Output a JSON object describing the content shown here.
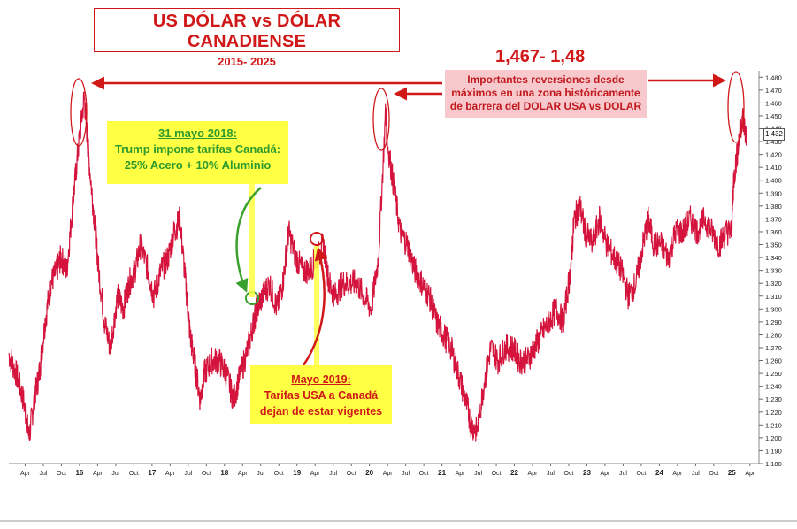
{
  "chart_data": {
    "type": "line",
    "title": "US DÓLAR vs DÓLAR CANADIENSE",
    "subtitle": "2015- 2025",
    "ylim": [
      1.18,
      1.485
    ],
    "y_ticks": [
      "1.480",
      "1.470",
      "1.460",
      "1.450",
      "1.440",
      "1.430",
      "1.420",
      "1.410",
      "1.400",
      "1.390",
      "1.380",
      "1.370",
      "1.360",
      "1.350",
      "1.340",
      "1.330",
      "1.320",
      "1.310",
      "1.300",
      "1.290",
      "1.280",
      "1.270",
      "1.260",
      "1.250",
      "1.240",
      "1.230",
      "1.220",
      "1.210",
      "1.200",
      "1.190",
      "1.180"
    ],
    "x_ticks": [
      "Apr",
      "Jul",
      "Oct",
      "16",
      "Apr",
      "Jul",
      "Oct",
      "17",
      "Apr",
      "Jul",
      "Oct",
      "18",
      "Apr",
      "Jul",
      "Oct",
      "19",
      "Apr",
      "Jul",
      "Oct",
      "20",
      "Apr",
      "Jul",
      "Oct",
      "21",
      "Apr",
      "Jul",
      "Oct",
      "22",
      "Apr",
      "Jul",
      "Oct",
      "23",
      "Apr",
      "Jul",
      "Oct",
      "24",
      "Apr",
      "Jul",
      "Oct",
      "25",
      "Apr"
    ],
    "series": [
      {
        "color": "#d4143c",
        "x": [
          2015.0,
          2015.1,
          2015.2,
          2015.28,
          2015.35,
          2015.42,
          2015.5,
          2015.58,
          2015.66,
          2015.72,
          2015.8,
          2015.88,
          2015.95,
          2016.04,
          2016.1,
          2016.18,
          2016.24,
          2016.32,
          2016.4,
          2016.5,
          2016.58,
          2016.66,
          2016.74,
          2016.82,
          2016.92,
          2017.0,
          2017.1,
          2017.2,
          2017.28,
          2017.36,
          2017.44,
          2017.5,
          2017.56,
          2017.64,
          2017.7,
          2017.8,
          2017.9,
          2018.0,
          2018.1,
          2018.2,
          2018.3,
          2018.38,
          2018.42,
          2018.5,
          2018.6,
          2018.7,
          2018.78,
          2018.86,
          2018.96,
          2019.05,
          2019.15,
          2019.25,
          2019.34,
          2019.42,
          2019.5,
          2019.6,
          2019.7,
          2019.8,
          2019.9,
          2020.0,
          2020.1,
          2020.2,
          2020.22,
          2020.3,
          2020.4,
          2020.5,
          2020.6,
          2020.7,
          2020.8,
          2020.9,
          2021.0,
          2021.1,
          2021.2,
          2021.3,
          2021.38,
          2021.46,
          2021.55,
          2021.65,
          2021.75,
          2021.85,
          2021.95,
          2022.05,
          2022.15,
          2022.25,
          2022.35,
          2022.45,
          2022.55,
          2022.65,
          2022.75,
          2022.8,
          2022.88,
          2022.95,
          2023.05,
          2023.15,
          2023.25,
          2023.35,
          2023.45,
          2023.55,
          2023.65,
          2023.75,
          2023.82,
          2023.9,
          2024.0,
          2024.1,
          2024.2,
          2024.3,
          2024.4,
          2024.5,
          2024.6,
          2024.7,
          2024.8,
          2024.9,
          2024.97,
          2025.0,
          2025.06,
          2025.12,
          2025.18
        ],
        "values": [
          1.265,
          1.25,
          1.23,
          1.2,
          1.23,
          1.25,
          1.29,
          1.32,
          1.33,
          1.34,
          1.33,
          1.38,
          1.42,
          1.465,
          1.42,
          1.37,
          1.33,
          1.29,
          1.27,
          1.31,
          1.3,
          1.32,
          1.33,
          1.35,
          1.33,
          1.31,
          1.33,
          1.34,
          1.36,
          1.37,
          1.32,
          1.28,
          1.26,
          1.23,
          1.25,
          1.26,
          1.26,
          1.25,
          1.23,
          1.25,
          1.27,
          1.29,
          1.3,
          1.31,
          1.32,
          1.3,
          1.32,
          1.36,
          1.34,
          1.33,
          1.33,
          1.34,
          1.35,
          1.32,
          1.31,
          1.32,
          1.32,
          1.32,
          1.31,
          1.3,
          1.34,
          1.455,
          1.43,
          1.4,
          1.36,
          1.35,
          1.33,
          1.32,
          1.31,
          1.29,
          1.28,
          1.27,
          1.25,
          1.23,
          1.21,
          1.205,
          1.24,
          1.27,
          1.26,
          1.27,
          1.27,
          1.26,
          1.26,
          1.27,
          1.28,
          1.29,
          1.3,
          1.29,
          1.33,
          1.37,
          1.38,
          1.36,
          1.35,
          1.37,
          1.35,
          1.34,
          1.33,
          1.31,
          1.32,
          1.35,
          1.37,
          1.35,
          1.35,
          1.34,
          1.36,
          1.36,
          1.37,
          1.36,
          1.37,
          1.36,
          1.35,
          1.36,
          1.36,
          1.4,
          1.425,
          1.45,
          1.432
        ]
      }
    ],
    "last_value_label": "1,432",
    "annotations": {
      "peak_label": "1,467- 1,48",
      "peak_note": [
        "Importantes reversiones desde",
        "máximos en una zona históricamente",
        "de barrera del DOLAR USA vs DOLAR"
      ],
      "box_2018": [
        "31 mayo 2018:",
        "Trump impone tarifas Canadá:",
        "25% Acero + 10% Aluminio"
      ],
      "box_2019": [
        "Mayo 2019:",
        "Tarifas USA a Canadá",
        "dejan de estar vigentes"
      ]
    }
  }
}
